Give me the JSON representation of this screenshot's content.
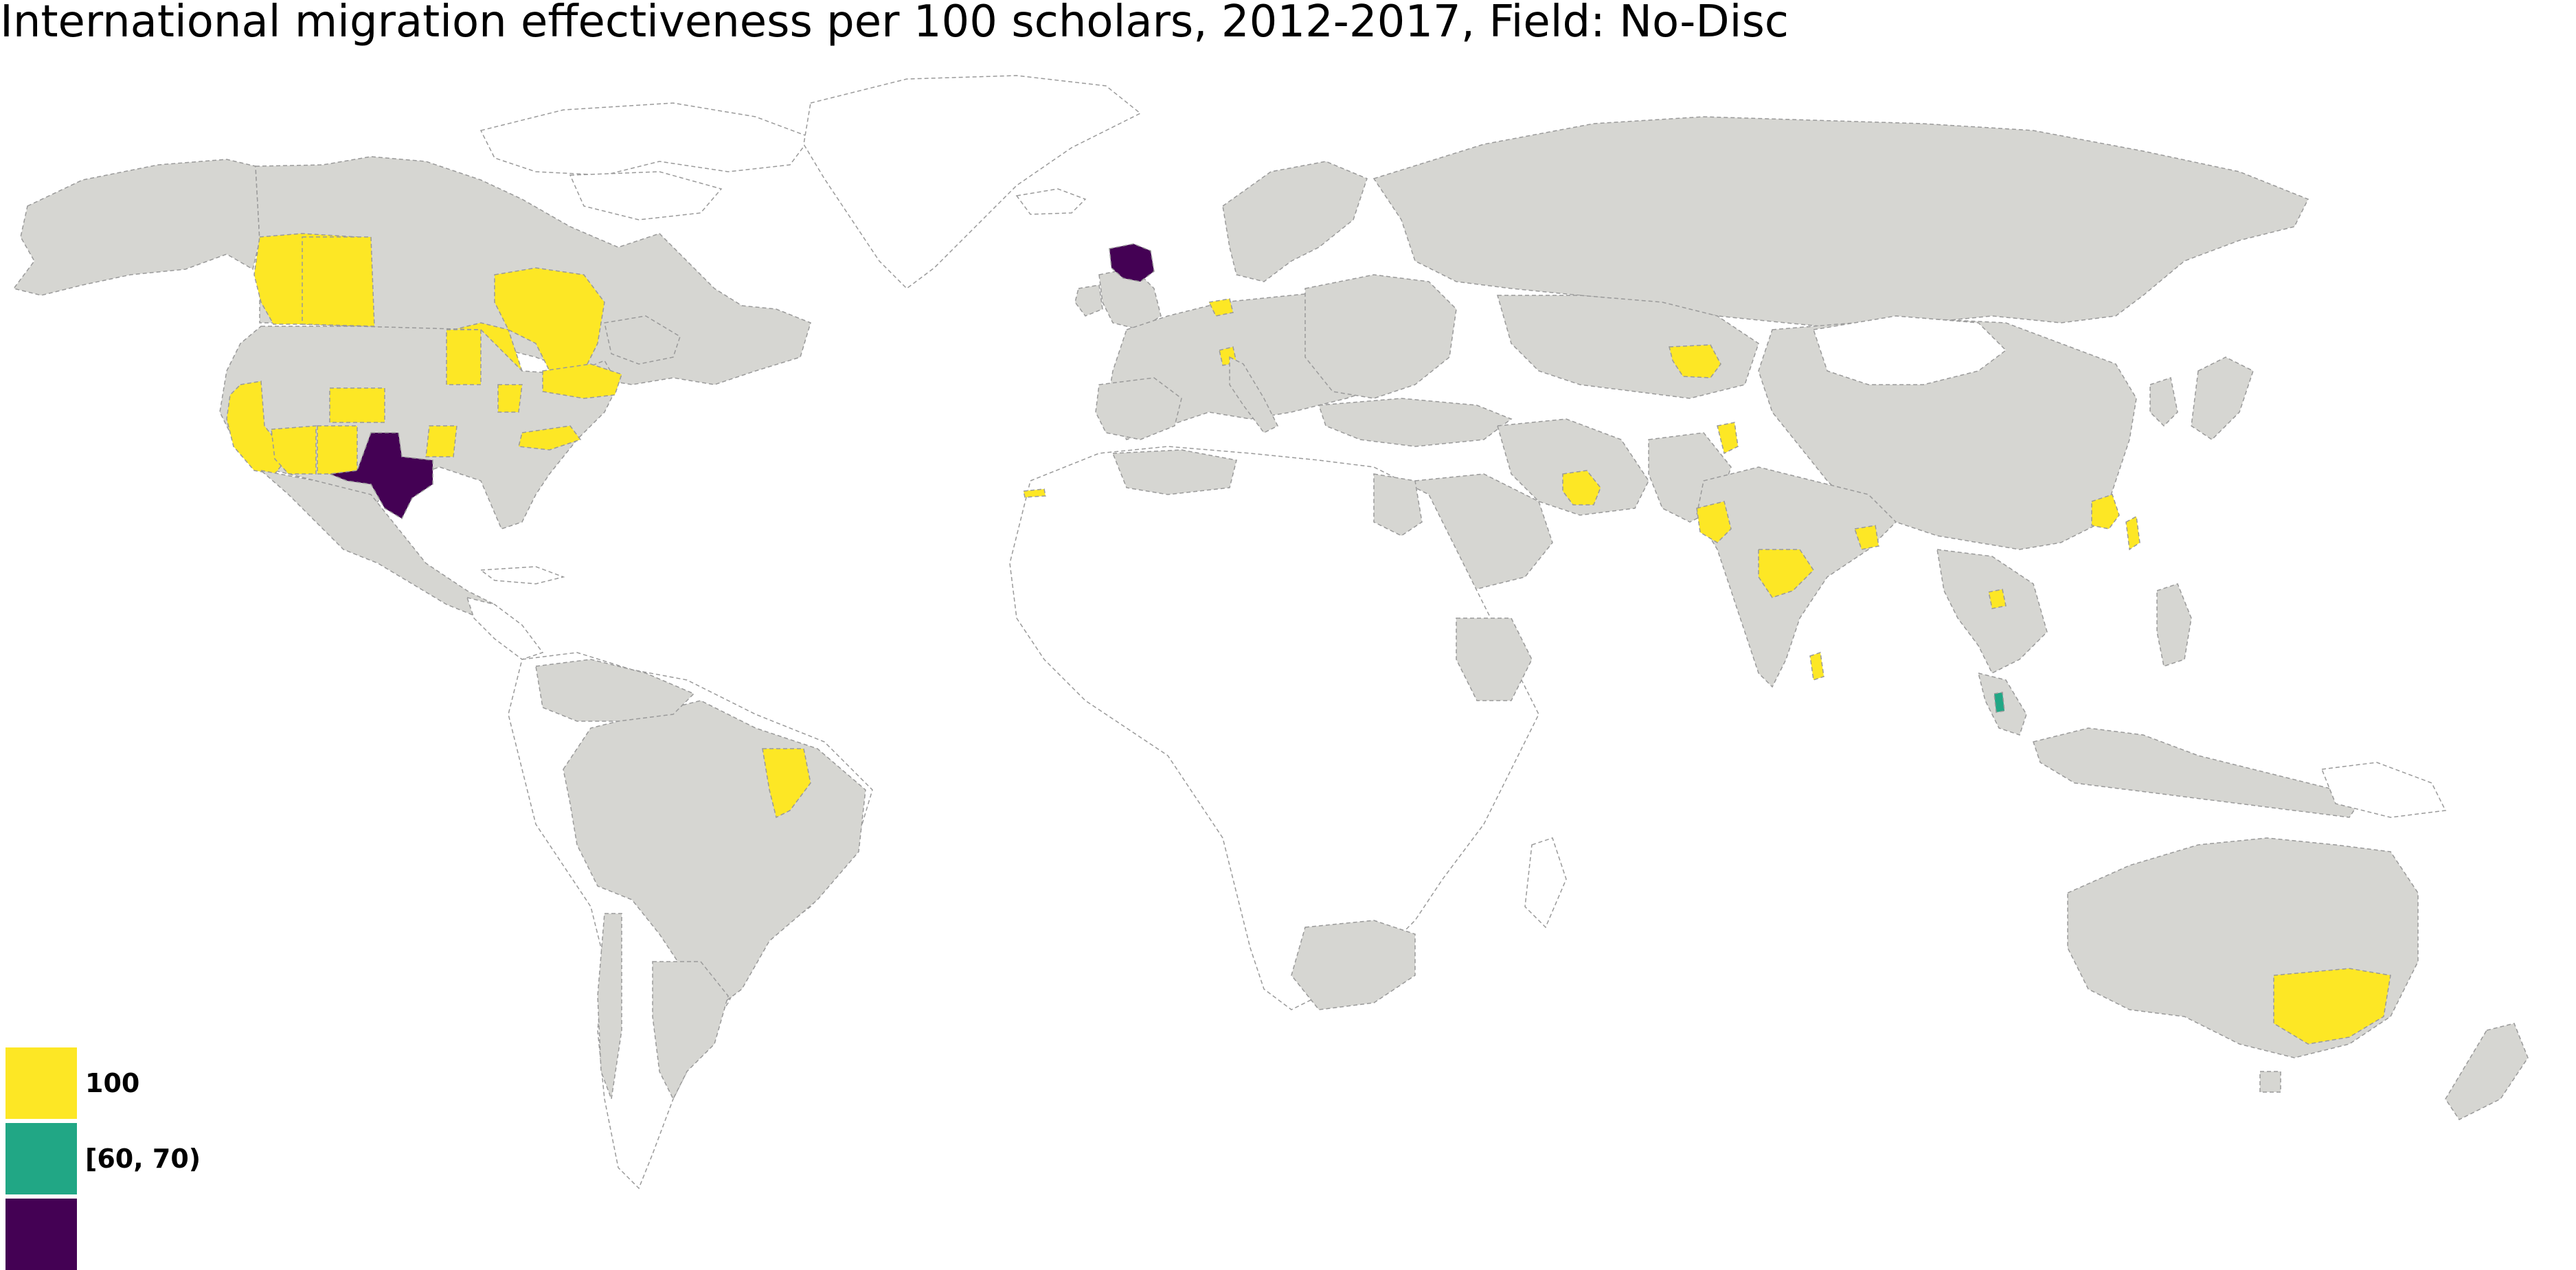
{
  "title": "International migration effectiveness per 100 scholars, 2012-2017, Field: No-Disc",
  "colors": {
    "no_data": "#ffffff",
    "data_gray": "#d6d6d2",
    "border": "#9a9a9a",
    "yellow": "#fde725",
    "teal": "#21a785",
    "purple": "#440154"
  },
  "legend": {
    "items": [
      {
        "label": "100",
        "color": "#fde725"
      },
      {
        "label": "[60, 70)",
        "color": "#21a785"
      },
      {
        "label": "",
        "color": "#440154"
      }
    ]
  },
  "regions": {
    "purple": [
      "Texas",
      "Scotland"
    ],
    "teal": [
      "Penang"
    ],
    "yellow": [
      "British Columbia",
      "Alberta",
      "Ontario",
      "Quebec",
      "California",
      "Arizona",
      "New Mexico",
      "Colorado",
      "Minnesota",
      "Iowa",
      "Illinois",
      "Michigan",
      "Pennsylvania",
      "New York",
      "North Carolina",
      "Para",
      "Tehran",
      "Punjab",
      "Gujarat",
      "Madhya Pradesh",
      "Bihar",
      "Kerala",
      "Fujian",
      "Taiwan",
      "Kazakhstan region",
      "New South Wales",
      "Bern",
      "Ticino",
      "Thailand region",
      "Canary Islands"
    ]
  }
}
